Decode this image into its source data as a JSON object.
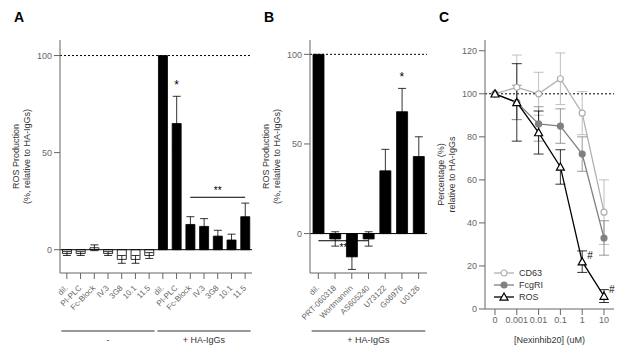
{
  "chart_data": [
    {
      "type": "bar",
      "title": "A",
      "ylabel": "ROS Production\n(%, relative to HA-IgGs)",
      "categories": [
        "dil.",
        "PI-PLC",
        "Fc-Block",
        "IV.3",
        "3G8",
        "10.1",
        "11.5",
        "dil.",
        "PI-PLC",
        "Fc-Block",
        "IV.3",
        "3G8",
        "10.1",
        "11.5"
      ],
      "series": [
        {
          "name": "-",
          "color": "#ffffff",
          "values": [
            -2,
            -2,
            1,
            -2,
            -5,
            -5,
            -3,
            null,
            null,
            null,
            null,
            null,
            null,
            null
          ],
          "errors": [
            1,
            1,
            1.5,
            1,
            2,
            2,
            1.5,
            null,
            null,
            null,
            null,
            null,
            null,
            null
          ]
        },
        {
          "name": "+ HA-IgGs",
          "color": "#000000",
          "values": [
            null,
            null,
            null,
            null,
            null,
            null,
            null,
            100,
            65,
            13,
            12,
            7,
            5,
            17
          ],
          "errors": [
            null,
            null,
            null,
            null,
            null,
            null,
            null,
            0,
            14,
            4,
            4,
            3,
            3,
            7
          ]
        }
      ],
      "ylim": [
        -12,
        108
      ],
      "yticks": [
        0,
        50,
        100
      ],
      "reference_lines": [
        {
          "y": 100,
          "line_style": "dotted"
        },
        {
          "y": 0,
          "line_style": "solid"
        }
      ],
      "annotations": [
        {
          "text": "*",
          "series": "+ HA-IgGs",
          "category": "PI-PLC",
          "y": 83
        },
        {
          "text": "**",
          "series": "+ HA-IgGs",
          "from": "Fc-Block",
          "to": "11.5",
          "y": 27,
          "position": "above"
        }
      ]
    },
    {
      "type": "bar",
      "title": "B",
      "ylabel": "ROS Production\n(%, relative to HA-IgGs)",
      "categories": [
        "dil.",
        "PRT-060318",
        "Wortmannin",
        "AS605240",
        "U73122",
        "Gö6976",
        "U0126"
      ],
      "series": [
        {
          "name": "+ HA-IgGs",
          "color": "#000000",
          "values": [
            100,
            -3,
            -13,
            -3,
            35,
            68,
            43
          ],
          "errors": [
            0,
            4,
            7,
            4,
            12,
            13,
            11
          ]
        }
      ],
      "ylim": [
        -22,
        108
      ],
      "yticks": [
        0,
        50,
        100
      ],
      "reference_lines": [
        {
          "y": 100,
          "line_style": "dotted"
        },
        {
          "y": 0,
          "line_style": "solid"
        }
      ],
      "annotations": [
        {
          "text": "*",
          "series": "+ HA-IgGs",
          "category": "Gö6976",
          "y": 85
        },
        {
          "text": "**",
          "series": "+ HA-IgGs",
          "from": "dil.",
          "to": "AS605240",
          "y": -4,
          "position": "below"
        }
      ]
    },
    {
      "type": "line",
      "title": "C",
      "xlabel": "[Nexinhib20] (uM)",
      "ylabel": "Percentage (%)\nrelative to HA-IgGs",
      "categories": [
        "0",
        "0.001",
        "0.01",
        "0.1",
        "1",
        "10"
      ],
      "series": [
        {
          "name": "CD63",
          "color": "#b0b0b0",
          "marker": "open circle",
          "values": [
            100,
            103,
            100,
            107,
            91,
            45
          ],
          "errors": [
            0,
            15,
            10,
            12,
            10,
            15
          ]
        },
        {
          "name": "FcgRI",
          "color": "#808080",
          "marker": "circle",
          "values": [
            100,
            96,
            86,
            85,
            72,
            33
          ],
          "errors": [
            0,
            8,
            8,
            8,
            8,
            8
          ]
        },
        {
          "name": "ROS",
          "color": "#000000",
          "marker": "open triangle",
          "values": [
            100,
            96,
            82,
            66,
            22,
            6
          ],
          "errors": [
            0,
            18,
            10,
            8,
            5,
            3
          ]
        }
      ],
      "ylim": [
        0,
        125
      ],
      "yticks": [
        0,
        20,
        40,
        60,
        80,
        100,
        120
      ],
      "reference_lines": [
        {
          "y": 100,
          "line_style": "dotted"
        }
      ],
      "legend": "lower left",
      "annotations": [
        {
          "text": "#",
          "series": "ROS",
          "category": "1"
        },
        {
          "text": "#",
          "series": "ROS",
          "category": "10"
        }
      ]
    }
  ]
}
